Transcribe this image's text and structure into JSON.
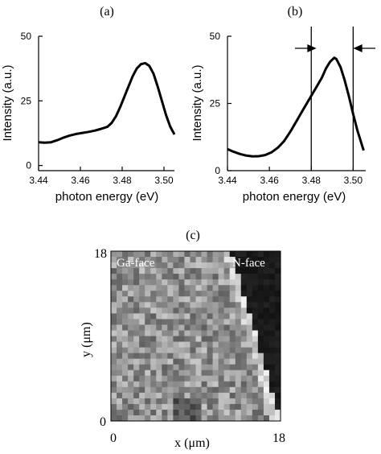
{
  "chart_data": [
    {
      "panel_label": "(a)",
      "type": "line",
      "xlabel": "photon energy (eV)",
      "ylabel": "Intensity (a.u.)",
      "xlim": [
        3.44,
        3.505
      ],
      "ylim": [
        -2,
        50
      ],
      "xticks": [
        "3.44",
        "3.46",
        "3.48",
        "3.50"
      ],
      "yticks": [
        "0",
        "25",
        "50"
      ],
      "grid": false,
      "series": [
        {
          "x": [
            3.44,
            3.443,
            3.446,
            3.449,
            3.452,
            3.455,
            3.458,
            3.461,
            3.464,
            3.467,
            3.47,
            3.473,
            3.475,
            3.477,
            3.479,
            3.481,
            3.483,
            3.485,
            3.487,
            3.489,
            3.491,
            3.493,
            3.495,
            3.497,
            3.499,
            3.501,
            3.503,
            3.505
          ],
          "y": [
            9,
            8.8,
            9,
            9.8,
            10.8,
            11.6,
            12.2,
            12.6,
            13,
            13.5,
            14.2,
            15,
            16.5,
            19,
            22.5,
            26.5,
            30.5,
            34.5,
            37.5,
            39.2,
            39.6,
            38.5,
            35.5,
            30.5,
            25,
            19.5,
            15,
            12
          ]
        }
      ]
    },
    {
      "panel_label": "(b)",
      "type": "line",
      "xlabel": "photon energy (eV)",
      "ylabel": "Intensity (a.u.)",
      "xlim": [
        3.44,
        3.506
      ],
      "ylim": [
        0,
        50
      ],
      "xticks": [
        "3.44",
        "3.46",
        "3.48",
        "3.50"
      ],
      "yticks": [
        "0",
        "25",
        "50"
      ],
      "grid": false,
      "vlines": [
        3.48,
        3.5
      ],
      "series": [
        {
          "x": [
            3.44,
            3.443,
            3.446,
            3.449,
            3.452,
            3.455,
            3.458,
            3.461,
            3.464,
            3.467,
            3.47,
            3.473,
            3.476,
            3.479,
            3.482,
            3.485,
            3.487,
            3.489,
            3.491,
            3.492,
            3.494,
            3.496,
            3.498,
            3.5,
            3.502,
            3.504,
            3.505
          ],
          "y": [
            8,
            7,
            6.2,
            5.6,
            5.3,
            5.4,
            5.8,
            6.8,
            8.5,
            11,
            14.5,
            18.5,
            22.5,
            26.5,
            30.5,
            34.5,
            38,
            40.5,
            42,
            41.5,
            38.5,
            33.5,
            27.5,
            21,
            15,
            10,
            7.5
          ]
        }
      ]
    },
    {
      "panel_label": "(c)",
      "type": "heatmap",
      "xlabel": "x (μm)",
      "ylabel": "y (μm)",
      "xlim": [
        0,
        18
      ],
      "ylim": [
        0,
        18
      ],
      "xticks": [
        "0",
        "18"
      ],
      "yticks": [
        "0",
        "18"
      ],
      "annotations": [
        "Ga-face",
        "N-face"
      ],
      "colormap": "grayscale"
    }
  ]
}
